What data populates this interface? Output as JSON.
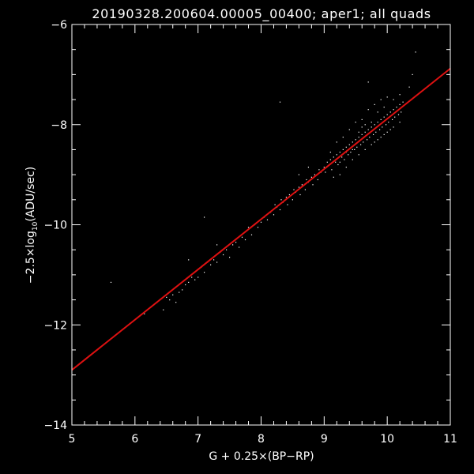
{
  "chart_data": {
    "type": "scatter",
    "title": "20190328.200604.00005_00400; aper1; all quads",
    "xlabel": "G + 0.25×(BP−RP)",
    "ylabel_parts": {
      "pre": "−2.5×log",
      "sub": "10",
      "post": "(ADU/sec)"
    },
    "xlim": [
      5,
      11
    ],
    "ylim": [
      -14,
      -6
    ],
    "x_ticks": [
      "5",
      "6",
      "7",
      "8",
      "9",
      "10",
      "11"
    ],
    "y_ticks": [
      "−14",
      "−12",
      "−10",
      "−8",
      "−6"
    ],
    "grid": false,
    "fit_line": {
      "x": [
        5,
        11
      ],
      "y": [
        -12.9,
        -6.88
      ],
      "color": "#dd1111"
    },
    "points": [
      [
        5.62,
        -11.15
      ],
      [
        6.15,
        -11.78
      ],
      [
        6.3,
        -11.6
      ],
      [
        6.35,
        -11.55
      ],
      [
        6.45,
        -11.7
      ],
      [
        6.5,
        -11.45
      ],
      [
        6.55,
        -11.5
      ],
      [
        6.6,
        -11.4
      ],
      [
        6.65,
        -11.55
      ],
      [
        6.7,
        -11.35
      ],
      [
        6.75,
        -11.3
      ],
      [
        6.8,
        -11.2
      ],
      [
        6.85,
        -11.15
      ],
      [
        6.9,
        -11.05
      ],
      [
        6.95,
        -11.1
      ],
      [
        7.0,
        -11.05
      ],
      [
        7.05,
        -10.85
      ],
      [
        7.1,
        -10.95
      ],
      [
        7.15,
        -10.75
      ],
      [
        7.2,
        -10.8
      ],
      [
        7.25,
        -10.7
      ],
      [
        7.3,
        -10.75
      ],
      [
        7.35,
        -10.55
      ],
      [
        7.4,
        -10.6
      ],
      [
        7.45,
        -10.5
      ],
      [
        7.5,
        -10.65
      ],
      [
        7.55,
        -10.4
      ],
      [
        7.6,
        -10.35
      ],
      [
        7.65,
        -10.45
      ],
      [
        7.7,
        -10.25
      ],
      [
        7.75,
        -10.3
      ],
      [
        7.8,
        -10.05
      ],
      [
        7.85,
        -10.2
      ],
      [
        7.9,
        -10.0
      ],
      [
        7.95,
        -10.05
      ],
      [
        8.0,
        -9.95
      ],
      [
        8.05,
        -9.85
      ],
      [
        8.1,
        -9.9
      ],
      [
        8.15,
        -9.75
      ],
      [
        8.2,
        -9.8
      ],
      [
        8.22,
        -9.6
      ],
      [
        8.25,
        -9.65
      ],
      [
        8.3,
        -9.7
      ],
      [
        8.32,
        -9.5
      ],
      [
        8.35,
        -9.55
      ],
      [
        8.4,
        -9.45
      ],
      [
        8.42,
        -9.6
      ],
      [
        8.45,
        -9.4
      ],
      [
        8.5,
        -9.5
      ],
      [
        8.52,
        -9.3
      ],
      [
        8.55,
        -9.35
      ],
      [
        8.6,
        -9.25
      ],
      [
        8.62,
        -9.4
      ],
      [
        8.65,
        -9.2
      ],
      [
        8.7,
        -9.3
      ],
      [
        8.72,
        -9.1
      ],
      [
        8.75,
        -9.15
      ],
      [
        8.8,
        -9.05
      ],
      [
        8.82,
        -9.2
      ],
      [
        8.85,
        -9.0
      ],
      [
        8.9,
        -9.1
      ],
      [
        8.92,
        -8.9
      ],
      [
        8.95,
        -8.95
      ],
      [
        9.0,
        -8.85
      ],
      [
        9.02,
        -8.95
      ],
      [
        9.05,
        -8.75
      ],
      [
        9.08,
        -8.8
      ],
      [
        9.1,
        -8.7
      ],
      [
        9.12,
        -8.9
      ],
      [
        9.15,
        -8.65
      ],
      [
        9.18,
        -8.75
      ],
      [
        9.2,
        -8.6
      ],
      [
        9.22,
        -8.8
      ],
      [
        9.25,
        -8.55
      ],
      [
        9.28,
        -8.65
      ],
      [
        9.3,
        -8.5
      ],
      [
        9.32,
        -8.7
      ],
      [
        9.35,
        -8.45
      ],
      [
        9.38,
        -8.6
      ],
      [
        9.4,
        -8.4
      ],
      [
        9.42,
        -8.55
      ],
      [
        9.45,
        -8.35
      ],
      [
        9.48,
        -8.5
      ],
      [
        9.5,
        -8.3
      ],
      [
        9.52,
        -8.45
      ],
      [
        9.55,
        -8.25
      ],
      [
        9.58,
        -8.4
      ],
      [
        9.6,
        -8.2
      ],
      [
        9.62,
        -8.35
      ],
      [
        9.65,
        -8.15
      ],
      [
        9.68,
        -8.3
      ],
      [
        9.7,
        -8.1
      ],
      [
        9.72,
        -8.25
      ],
      [
        9.75,
        -8.05
      ],
      [
        9.78,
        -8.2
      ],
      [
        9.8,
        -8.0
      ],
      [
        9.82,
        -8.15
      ],
      [
        9.85,
        -7.95
      ],
      [
        9.88,
        -8.1
      ],
      [
        9.9,
        -7.9
      ],
      [
        9.92,
        -8.05
      ],
      [
        9.95,
        -7.85
      ],
      [
        9.98,
        -8.0
      ],
      [
        10.0,
        -7.8
      ],
      [
        10.02,
        -7.95
      ],
      [
        10.05,
        -7.75
      ],
      [
        10.08,
        -7.9
      ],
      [
        10.1,
        -7.7
      ],
      [
        10.12,
        -7.85
      ],
      [
        10.15,
        -7.65
      ],
      [
        10.18,
        -7.8
      ],
      [
        10.2,
        -7.6
      ],
      [
        10.22,
        -7.75
      ],
      [
        10.25,
        -7.55
      ],
      [
        9.6,
        -7.9
      ],
      [
        9.7,
        -7.7
      ],
      [
        9.8,
        -7.6
      ],
      [
        9.9,
        -7.5
      ],
      [
        10.0,
        -7.45
      ],
      [
        9.5,
        -7.95
      ],
      [
        9.4,
        -8.1
      ],
      [
        9.3,
        -8.25
      ],
      [
        9.55,
        -8.6
      ],
      [
        9.65,
        -8.5
      ],
      [
        9.75,
        -8.4
      ],
      [
        9.85,
        -8.3
      ],
      [
        9.95,
        -8.2
      ],
      [
        10.05,
        -8.1
      ],
      [
        9.45,
        -8.7
      ],
      [
        9.35,
        -8.85
      ],
      [
        9.25,
        -9.0
      ],
      [
        9.15,
        -9.05
      ],
      [
        10.35,
        -7.25
      ],
      [
        10.4,
        -7.0
      ],
      [
        10.45,
        -6.55
      ],
      [
        9.7,
        -7.15
      ],
      [
        8.3,
        -7.55
      ],
      [
        7.1,
        -9.85
      ],
      [
        6.85,
        -10.7
      ],
      [
        7.3,
        -10.4
      ],
      [
        8.6,
        -9.0
      ],
      [
        8.75,
        -8.85
      ],
      [
        9.6,
        -8.05
      ],
      [
        9.75,
        -7.95
      ],
      [
        9.85,
        -7.75
      ],
      [
        9.95,
        -7.65
      ],
      [
        10.1,
        -7.5
      ],
      [
        10.2,
        -7.4
      ],
      [
        9.55,
        -8.15
      ],
      [
        9.65,
        -8.0
      ],
      [
        9.8,
        -8.35
      ],
      [
        9.9,
        -8.25
      ],
      [
        10.0,
        -8.15
      ],
      [
        10.1,
        -8.05
      ],
      [
        10.2,
        -7.95
      ],
      [
        9.45,
        -8.5
      ],
      [
        9.35,
        -8.55
      ],
      [
        9.25,
        -8.75
      ],
      [
        9.2,
        -8.35
      ],
      [
        9.1,
        -8.55
      ]
    ]
  }
}
